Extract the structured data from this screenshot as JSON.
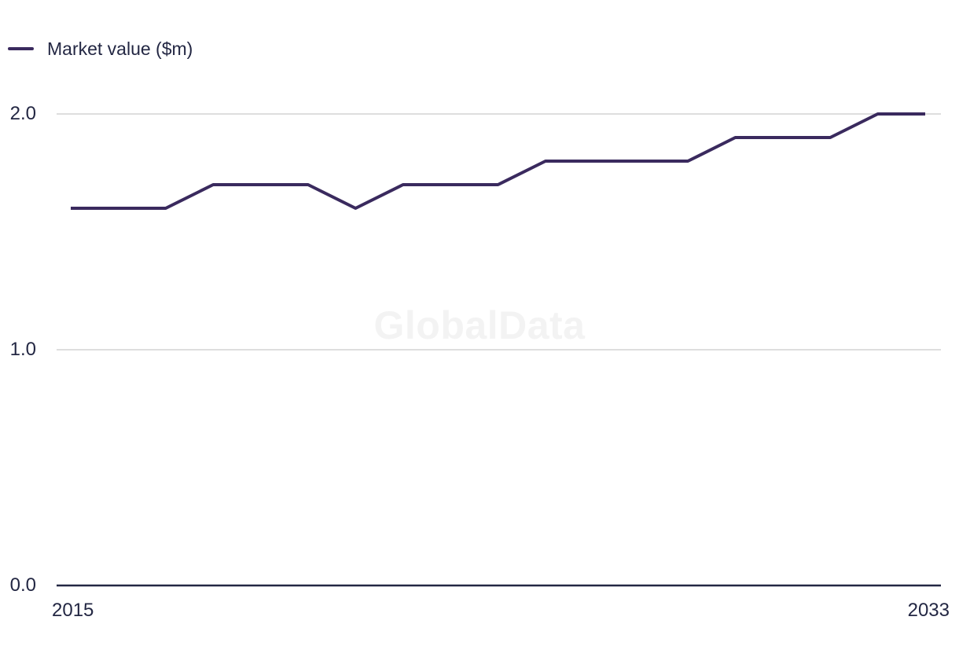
{
  "watermark": "GlobalData",
  "chart_data": {
    "type": "line",
    "title": "",
    "legend_label": "Market value ($m)",
    "legend_position": "top-left",
    "xlabel": "",
    "ylabel": "",
    "x": [
      2015,
      2016,
      2017,
      2018,
      2019,
      2020,
      2021,
      2022,
      2023,
      2024,
      2025,
      2026,
      2027,
      2028,
      2029,
      2030,
      2031,
      2032,
      2033
    ],
    "series": [
      {
        "name": "Market value ($m)",
        "color": "#3a2a5e",
        "values": [
          1.6,
          1.6,
          1.6,
          1.7,
          1.7,
          1.7,
          1.6,
          1.7,
          1.7,
          1.7,
          1.8,
          1.8,
          1.8,
          1.8,
          1.9,
          1.9,
          1.9,
          2.0,
          2.0
        ]
      }
    ],
    "ylim": [
      0.0,
      2.0
    ],
    "yticks": [
      {
        "label": "0.0",
        "value": 0.0
      },
      {
        "label": "1.0",
        "value": 1.0
      },
      {
        "label": "2.0",
        "value": 2.0
      }
    ],
    "xticks": [
      {
        "label": "2015",
        "value": 2015
      },
      {
        "label": "2033",
        "value": 2033
      }
    ],
    "grid": "horizontal",
    "colors": {
      "grid": "#dedede",
      "axis": "#232743",
      "text": "#232743",
      "watermark": "#f3f3f3"
    }
  }
}
